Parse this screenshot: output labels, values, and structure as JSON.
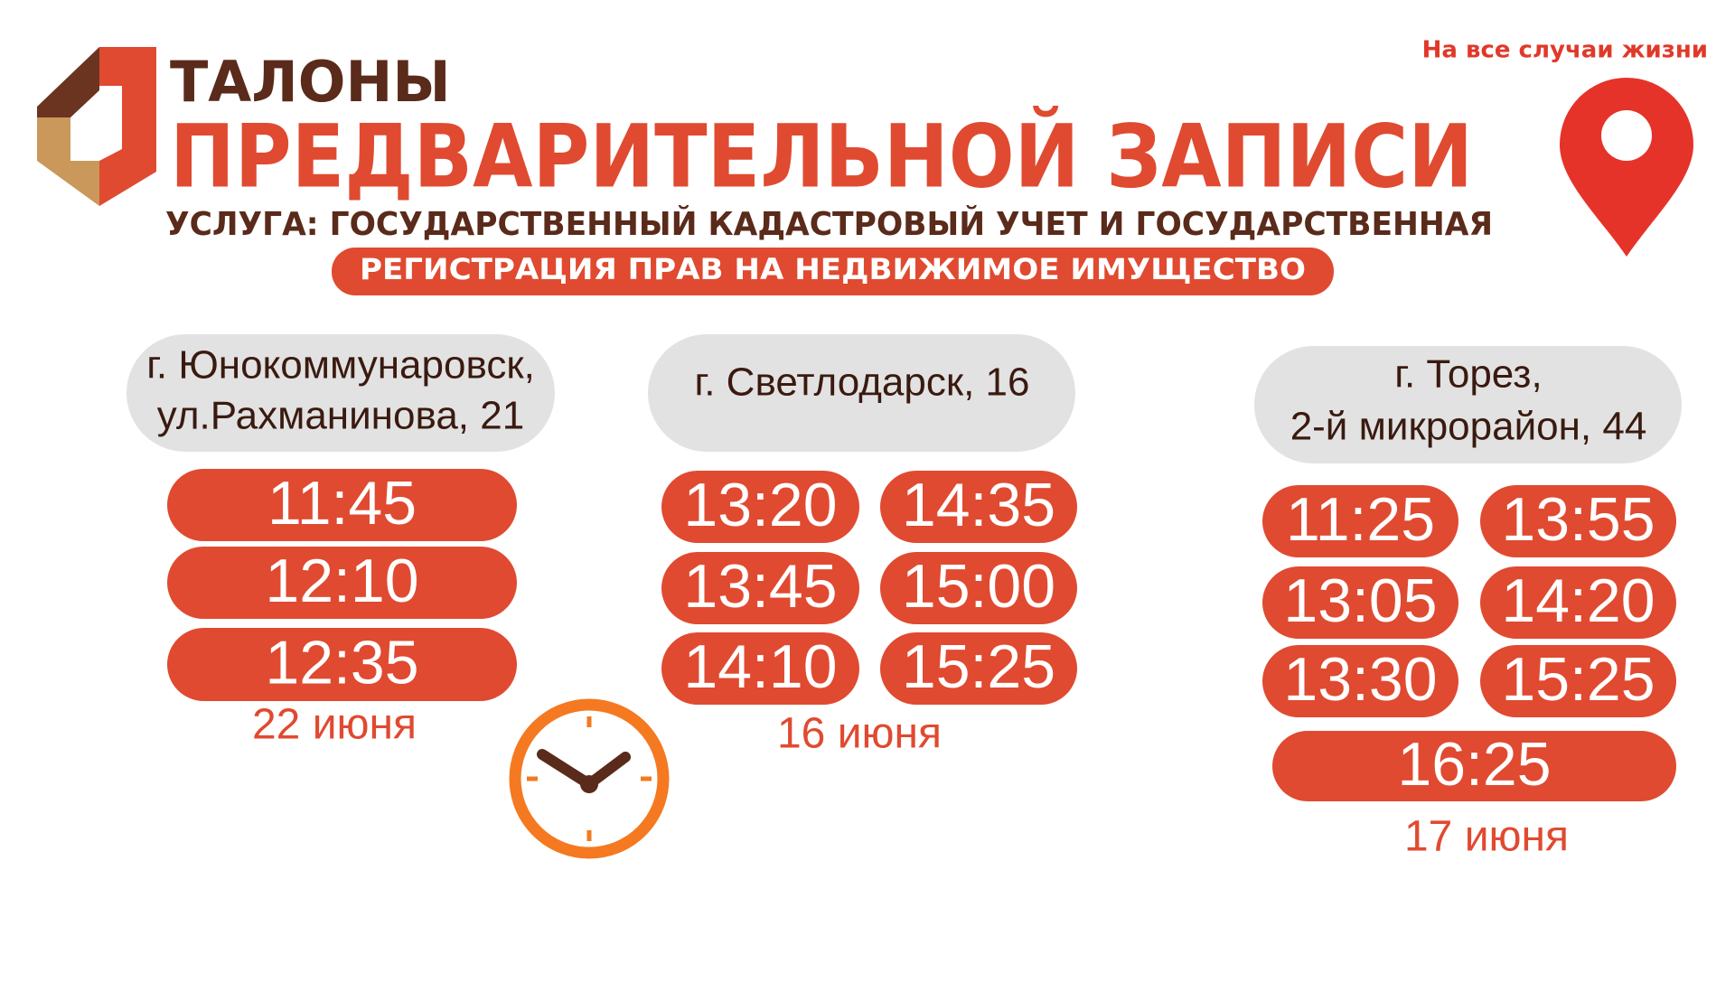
{
  "header": {
    "title_small": "ТАЛОНЫ",
    "title_big": "ПРЕДВАРИТЕЛЬНОЙ ЗАПИСИ",
    "service_line1": "УСЛУГА: ГОСУДАРСТВЕННЫЙ КАДАСТРОВЫЙ УЧЕТ И ГОСУДАРСТВЕННАЯ",
    "service_line2": "РЕГИСТРАЦИЯ ПРАВ НА НЕДВИЖИМОЕ ИМУЩЕСТВО",
    "slogan": "На все случаи жизни"
  },
  "locations": [
    {
      "address_lines": [
        "г. Юнокоммунаровск,",
        "ул.Рахманинова, 21"
      ],
      "times": [
        "11:45",
        "12:10",
        "12:35"
      ],
      "date": "22 июня"
    },
    {
      "address_lines": [
        "г. Светлодарск, 16"
      ],
      "times": [
        "13:20",
        "14:35",
        "13:45",
        "15:00",
        "14:10",
        "15:25"
      ],
      "date": "16 июня"
    },
    {
      "address_lines": [
        "г. Торез,",
        "2-й микрорайон, 44"
      ],
      "times": [
        "11:25",
        "13:55",
        "13:05",
        "14:20",
        "13:30",
        "15:25",
        "16:25"
      ],
      "date": "17 июня"
    }
  ]
}
